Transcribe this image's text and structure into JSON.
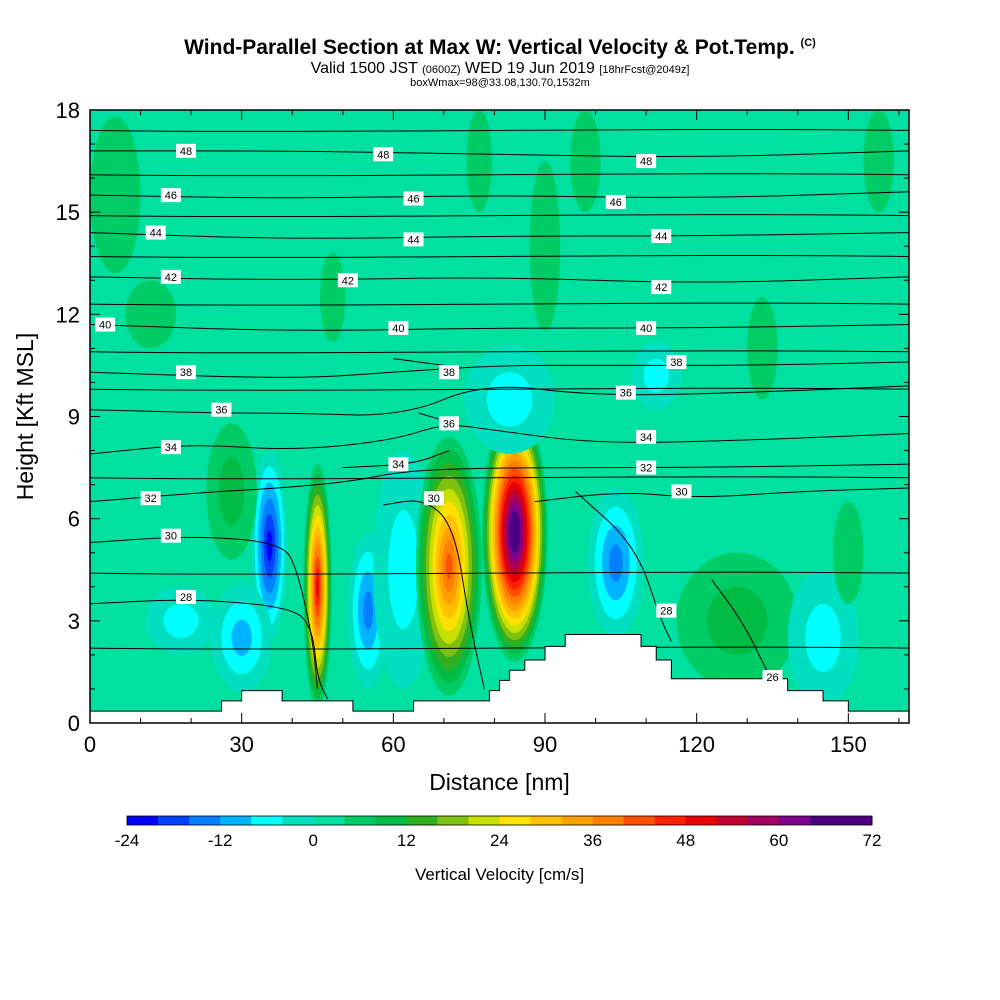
{
  "title": {
    "main": "Wind-Parallel Section at Max W: Vertical Velocity & Pot.Temp.",
    "copyright": "(C)",
    "valid_prefix": "Valid 1500 JST",
    "valid_utc": "(0600Z)",
    "valid_date": "WED 19 Jun 2019",
    "forecast": "[18hrFcst@2049z]",
    "box_info": "boxWmax=98@33.08,130.70,1532m"
  },
  "chart_data": {
    "type": "heatmap",
    "xlabel": "Distance [nm]",
    "ylabel": "Height [Kft MSL]",
    "xlim": [
      0,
      162
    ],
    "ylim": [
      0,
      18
    ],
    "x_ticks": [
      "0",
      "30",
      "60",
      "90",
      "120",
      "150"
    ],
    "y_ticks": [
      "0",
      "3",
      "6",
      "9",
      "12",
      "15",
      "18"
    ],
    "colorbar": {
      "title": "Vertical Velocity [cm/s]",
      "tick_labels": [
        "-24",
        "-12",
        "0",
        "12",
        "24",
        "36",
        "48",
        "60",
        "72"
      ],
      "min": -24,
      "max": 72,
      "step": 4
    },
    "background_color": "#00e0a0",
    "cells": [
      {
        "cx": 45,
        "cy": 4.0,
        "rx": 2.8,
        "ry": 3.6,
        "w": 48
      },
      {
        "cx": 35.5,
        "cy": 5.2,
        "rx": 3.5,
        "ry": 2.8,
        "w": -22
      },
      {
        "cx": 30,
        "cy": 2.5,
        "rx": 6,
        "ry": 1.6,
        "w": -10
      },
      {
        "cx": 55,
        "cy": 3.3,
        "rx": 4,
        "ry": 2.3,
        "w": -13
      },
      {
        "cx": 62,
        "cy": 4.5,
        "rx": 6,
        "ry": 3.5,
        "w": -6
      },
      {
        "cx": 71,
        "cy": 4.6,
        "rx": 6.5,
        "ry": 3.8,
        "w": 40
      },
      {
        "cx": 84,
        "cy": 5.6,
        "rx": 6.5,
        "ry": 3.8,
        "w": 72
      },
      {
        "cx": 104,
        "cy": 4.7,
        "rx": 5.5,
        "ry": 2.2,
        "w": -14
      },
      {
        "cx": 128,
        "cy": 3.0,
        "rx": 12,
        "ry": 2.0,
        "w": 8
      },
      {
        "cx": 145,
        "cy": 2.5,
        "rx": 7,
        "ry": 2.0,
        "w": -6
      },
      {
        "cx": 28,
        "cy": 6.8,
        "rx": 5,
        "ry": 2.0,
        "w": 8
      },
      {
        "cx": 18,
        "cy": 3.0,
        "rx": 7,
        "ry": 1.0,
        "w": -5
      },
      {
        "cx": 83,
        "cy": 9.5,
        "rx": 9,
        "ry": 1.6,
        "w": -6
      },
      {
        "cx": 112,
        "cy": 10.2,
        "rx": 5,
        "ry": 1.0,
        "w": -5
      },
      {
        "cx": 5,
        "cy": 15.5,
        "rx": 5,
        "ry": 2.3,
        "w": 6
      },
      {
        "cx": 12,
        "cy": 12.0,
        "rx": 5,
        "ry": 1.0,
        "w": 6
      },
      {
        "cx": 48,
        "cy": 12.5,
        "rx": 2.5,
        "ry": 1.3,
        "w": 6
      },
      {
        "cx": 77,
        "cy": 16.5,
        "rx": 2.5,
        "ry": 1.5,
        "w": 6
      },
      {
        "cx": 90,
        "cy": 14.0,
        "rx": 3,
        "ry": 2.5,
        "w": 6
      },
      {
        "cx": 98,
        "cy": 16.5,
        "rx": 3,
        "ry": 1.5,
        "w": 6
      },
      {
        "cx": 156,
        "cy": 16.5,
        "rx": 3,
        "ry": 1.5,
        "w": 6
      },
      {
        "cx": 133,
        "cy": 11.0,
        "rx": 3,
        "ry": 1.5,
        "w": 6
      },
      {
        "cx": 150,
        "cy": 5.0,
        "rx": 3,
        "ry": 1.5,
        "w": 6
      }
    ],
    "terrain": [
      [
        0,
        0
      ],
      [
        0,
        0.35
      ],
      [
        26,
        0.35
      ],
      [
        26,
        0.65
      ],
      [
        30,
        0.65
      ],
      [
        30,
        0.95
      ],
      [
        38,
        0.95
      ],
      [
        38,
        0.65
      ],
      [
        52,
        0.65
      ],
      [
        52,
        0.35
      ],
      [
        64,
        0.35
      ],
      [
        64,
        0.65
      ],
      [
        79,
        0.65
      ],
      [
        79,
        0.95
      ],
      [
        81,
        0.95
      ],
      [
        81,
        1.25
      ],
      [
        83,
        1.25
      ],
      [
        83,
        1.55
      ],
      [
        86,
        1.55
      ],
      [
        86,
        1.85
      ],
      [
        90,
        1.85
      ],
      [
        90,
        2.25
      ],
      [
        94,
        2.25
      ],
      [
        94,
        2.6
      ],
      [
        109,
        2.6
      ],
      [
        109,
        2.25
      ],
      [
        112,
        2.25
      ],
      [
        112,
        1.85
      ],
      [
        115,
        1.85
      ],
      [
        115,
        1.3
      ],
      [
        138,
        1.3
      ],
      [
        138,
        0.95
      ],
      [
        145,
        0.95
      ],
      [
        145,
        0.65
      ],
      [
        150,
        0.65
      ],
      [
        150,
        0.35
      ],
      [
        162,
        0.35
      ],
      [
        162,
        0
      ]
    ],
    "isentropes": [
      {
        "theta": "26",
        "points": [
          [
            123,
            4.2
          ],
          [
            129,
            3.0
          ],
          [
            134,
            1.5
          ],
          [
            136,
            0.9
          ]
        ],
        "label": [
          135,
          1.35
        ]
      },
      {
        "theta": "28",
        "points": [
          [
            0,
            3.5
          ],
          [
            20,
            3.65
          ],
          [
            40,
            3.4
          ],
          [
            44,
            2.8
          ],
          [
            45,
            1.3
          ],
          [
            47,
            0.7
          ]
        ],
        "label": [
          19,
          3.7
        ]
      },
      {
        "theta": "28",
        "points": [
          [
            96,
            6.8
          ],
          [
            108,
            5.2
          ],
          [
            113,
            3.0
          ],
          [
            115,
            2.4
          ]
        ],
        "label": [
          114,
          3.3
        ]
      },
      {
        "theta": "30",
        "points": [
          [
            0,
            5.3
          ],
          [
            20,
            5.5
          ],
          [
            38,
            5.3
          ],
          [
            41,
            4.5
          ],
          [
            44,
            2.5
          ],
          [
            45,
            1.0
          ]
        ],
        "label": [
          16,
          5.5
        ]
      },
      {
        "theta": "30",
        "points": [
          [
            58,
            6.4
          ],
          [
            66,
            6.6
          ],
          [
            72,
            5.8
          ],
          [
            75,
            3.0
          ],
          [
            78,
            1.0
          ]
        ],
        "label": [
          68,
          6.6
        ]
      },
      {
        "theta": "30",
        "points": [
          [
            88,
            6.5
          ],
          [
            105,
            6.8
          ],
          [
            120,
            6.6
          ],
          [
            140,
            6.8
          ],
          [
            162,
            6.9
          ]
        ],
        "label": [
          117,
          6.8
        ]
      },
      {
        "theta": "32",
        "points": [
          [
            0,
            6.5
          ],
          [
            25,
            6.8
          ],
          [
            38,
            6.9
          ],
          [
            52,
            7.1
          ],
          [
            62,
            7.4
          ],
          [
            80,
            7.5
          ],
          [
            120,
            7.5
          ],
          [
            162,
            7.6
          ]
        ],
        "label": [
          12,
          6.6
        ]
      },
      {
        "theta": "34",
        "points": [
          [
            0,
            7.9
          ],
          [
            20,
            8.2
          ],
          [
            40,
            8.0
          ],
          [
            60,
            8.3
          ],
          [
            70,
            8.8
          ],
          [
            80,
            8.6
          ],
          [
            100,
            8.2
          ],
          [
            130,
            8.3
          ],
          [
            162,
            8.5
          ]
        ],
        "label": [
          16,
          8.1
        ]
      },
      {
        "theta": "34",
        "points": [
          [
            50,
            7.5
          ],
          [
            64,
            7.6
          ],
          [
            71,
            8.0
          ]
        ],
        "label": [
          61,
          7.6
        ]
      },
      {
        "theta": "36",
        "points": [
          [
            0,
            9.2
          ],
          [
            25,
            9.1
          ],
          [
            40,
            9.1
          ],
          [
            62,
            9.0
          ],
          [
            78,
            10.0
          ],
          [
            100,
            9.6
          ],
          [
            130,
            9.7
          ],
          [
            162,
            9.9
          ]
        ],
        "label": [
          26,
          9.2
        ]
      },
      {
        "theta": "36",
        "points": [
          [
            65,
            9.1
          ],
          [
            72,
            8.8
          ]
        ],
        "label": [
          71,
          8.8
        ]
      },
      {
        "theta": "38",
        "points": [
          [
            0,
            10.3
          ],
          [
            40,
            10.1
          ],
          [
            60,
            10.3
          ],
          [
            80,
            10.5
          ],
          [
            100,
            10.5
          ],
          [
            130,
            10.5
          ],
          [
            162,
            10.6
          ]
        ],
        "label": [
          19,
          10.3
        ]
      },
      {
        "theta": "38",
        "points": [
          [
            60,
            10.7
          ],
          [
            70,
            10.5
          ]
        ],
        "label": [
          71,
          10.3
        ]
      },
      {
        "theta": "40",
        "points": [
          [
            0,
            11.7
          ],
          [
            40,
            11.5
          ],
          [
            80,
            11.6
          ],
          [
            120,
            11.6
          ],
          [
            162,
            11.7
          ]
        ],
        "label": [
          3,
          11.7
        ]
      },
      {
        "theta": "42",
        "points": [
          [
            0,
            13.1
          ],
          [
            40,
            13.0
          ],
          [
            80,
            13.1
          ],
          [
            120,
            12.9
          ],
          [
            162,
            13.1
          ]
        ],
        "label": [
          16,
          13.1
        ]
      },
      {
        "theta": "44",
        "points": [
          [
            0,
            14.4
          ],
          [
            40,
            14.2
          ],
          [
            80,
            14.3
          ],
          [
            120,
            14.3
          ],
          [
            162,
            14.4
          ]
        ],
        "label": [
          13,
          14.4
        ]
      },
      {
        "theta": "46",
        "points": [
          [
            0,
            15.5
          ],
          [
            40,
            15.4
          ],
          [
            80,
            15.5
          ],
          [
            120,
            15.4
          ],
          [
            162,
            15.6
          ]
        ],
        "label": [
          16,
          15.5
        ]
      },
      {
        "theta": "48",
        "points": [
          [
            0,
            16.8
          ],
          [
            40,
            16.8
          ],
          [
            80,
            16.7
          ],
          [
            120,
            16.6
          ],
          [
            162,
            16.8
          ]
        ],
        "label": [
          19,
          16.8
        ]
      }
    ],
    "extra_labels": [
      {
        "theta": "48",
        "at": [
          58,
          16.7
        ]
      },
      {
        "theta": "48",
        "at": [
          110,
          16.5
        ]
      },
      {
        "theta": "46",
        "at": [
          64,
          15.4
        ]
      },
      {
        "theta": "46",
        "at": [
          104,
          15.3
        ]
      },
      {
        "theta": "44",
        "at": [
          64,
          14.2
        ]
      },
      {
        "theta": "44",
        "at": [
          113,
          14.3
        ]
      },
      {
        "theta": "42",
        "at": [
          51,
          13.0
        ]
      },
      {
        "theta": "42",
        "at": [
          113,
          12.8
        ]
      },
      {
        "theta": "40",
        "at": [
          61,
          11.6
        ]
      },
      {
        "theta": "40",
        "at": [
          110,
          11.6
        ]
      },
      {
        "theta": "38",
        "at": [
          116,
          10.6
        ]
      },
      {
        "theta": "36",
        "at": [
          106,
          9.7
        ]
      },
      {
        "theta": "34",
        "at": [
          110,
          8.4
        ]
      },
      {
        "theta": "32",
        "at": [
          110,
          7.5
        ]
      }
    ]
  },
  "palette": [
    "#0000ff",
    "#0040ff",
    "#0080ff",
    "#00b4ff",
    "#00ffff",
    "#00e0c0",
    "#00e0a0",
    "#00cc66",
    "#00bb44",
    "#30b020",
    "#80c010",
    "#c8e000",
    "#ffe000",
    "#ffc000",
    "#ffa000",
    "#ff8000",
    "#ff5000",
    "#ff2000",
    "#e80000",
    "#c00030",
    "#a00060",
    "#800090",
    "#4a0080",
    "#4a0080"
  ]
}
